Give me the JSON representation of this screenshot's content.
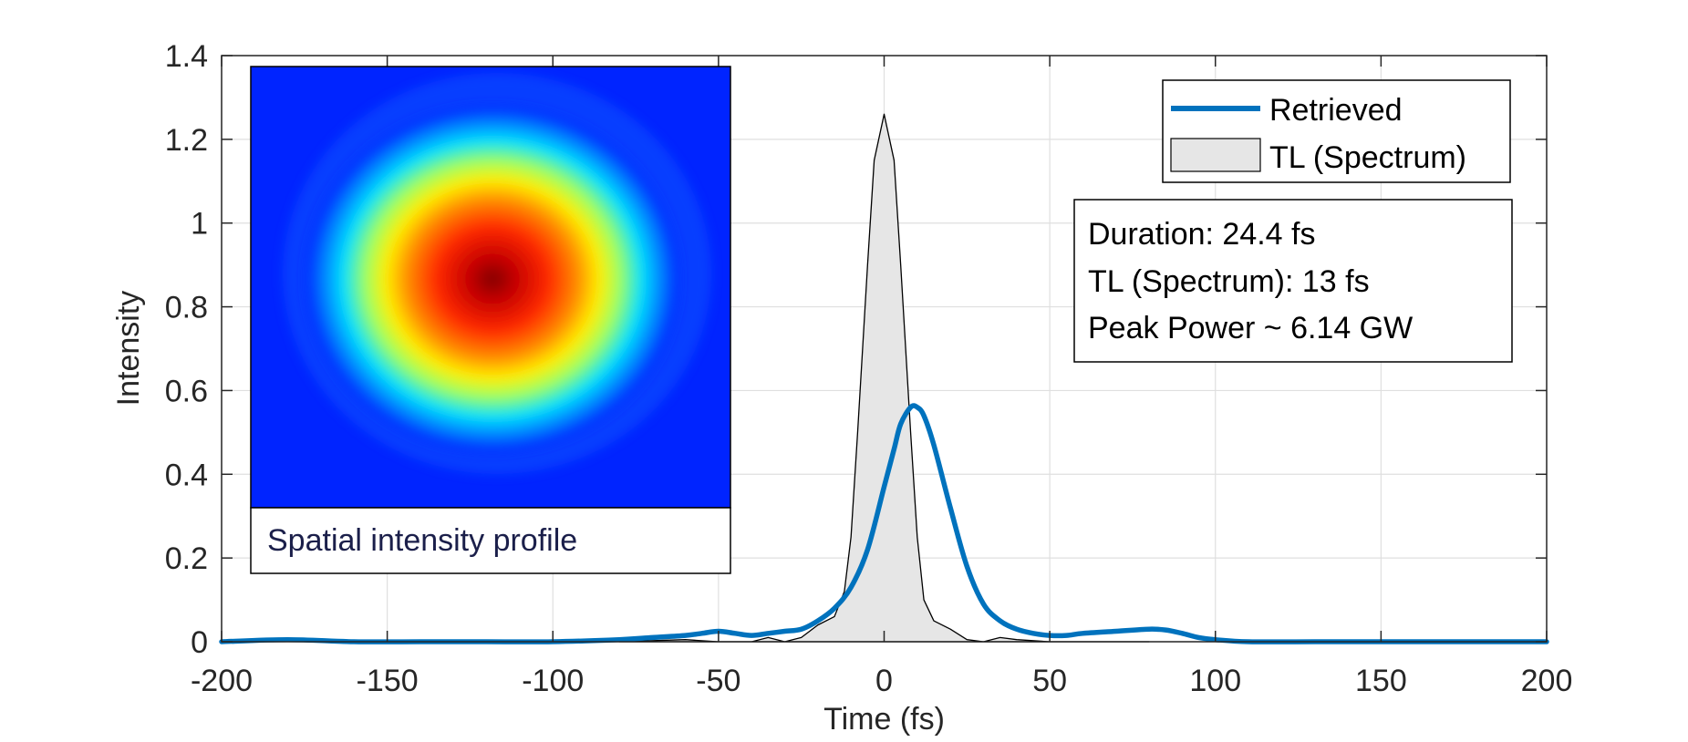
{
  "chart_data": {
    "type": "area",
    "title": "",
    "xlabel": "Time (fs)",
    "ylabel": "Intensity",
    "xlim": [
      -200,
      200
    ],
    "ylim": [
      0,
      1.4
    ],
    "grid": true,
    "xticks": [
      -200,
      -150,
      -100,
      -50,
      0,
      50,
      100,
      150,
      200
    ],
    "xtick_labels": [
      "-200",
      "-150",
      "-100",
      "-50",
      "0",
      "50",
      "100",
      "150",
      "200"
    ],
    "yticks": [
      0,
      0.2,
      0.4,
      0.6,
      0.8,
      1,
      1.2,
      1.4
    ],
    "ytick_labels": [
      "0",
      "0.2",
      "0.4",
      "0.6",
      "0.8",
      "1",
      "1.2",
      "1.4"
    ],
    "legend_position": "top-right",
    "series": [
      {
        "name": "Retrieved",
        "style": "line",
        "color": "#0072bd",
        "x": [
          -200,
          -180,
          -160,
          -140,
          -120,
          -100,
          -80,
          -70,
          -60,
          -55,
          -50,
          -45,
          -40,
          -35,
          -30,
          -25,
          -20,
          -15,
          -10,
          -5,
          0,
          3,
          5,
          8,
          10,
          12,
          15,
          20,
          25,
          30,
          35,
          40,
          45,
          50,
          55,
          60,
          70,
          80,
          85,
          90,
          95,
          100,
          110,
          130,
          150,
          170,
          200
        ],
        "values": [
          0.0,
          0.005,
          0.0,
          0.0,
          0.0,
          0.0,
          0.005,
          0.01,
          0.015,
          0.02,
          0.025,
          0.02,
          0.015,
          0.02,
          0.025,
          0.03,
          0.05,
          0.08,
          0.13,
          0.22,
          0.37,
          0.46,
          0.52,
          0.56,
          0.56,
          0.54,
          0.47,
          0.32,
          0.18,
          0.09,
          0.05,
          0.03,
          0.02,
          0.015,
          0.015,
          0.02,
          0.025,
          0.03,
          0.028,
          0.02,
          0.01,
          0.005,
          0.0,
          0.0,
          0.0,
          0.0,
          0.0
        ]
      },
      {
        "name": "TL (Spectrum)",
        "style": "area",
        "color": "#e6e6e6",
        "edge_color": "#000000",
        "x": [
          -80,
          -60,
          -50,
          -40,
          -35,
          -30,
          -25,
          -20,
          -15,
          -12,
          -10,
          -8,
          -5,
          -3,
          0,
          3,
          5,
          8,
          10,
          12,
          15,
          20,
          25,
          30,
          35,
          40,
          50,
          60,
          80
        ],
        "values": [
          0.0,
          0.005,
          0.0,
          0.0,
          0.01,
          0.0,
          0.01,
          0.04,
          0.06,
          0.12,
          0.25,
          0.5,
          0.9,
          1.15,
          1.26,
          1.15,
          0.9,
          0.5,
          0.25,
          0.1,
          0.05,
          0.03,
          0.005,
          0.0,
          0.01,
          0.005,
          0.0,
          0.0,
          0.0
        ]
      }
    ],
    "annotation": {
      "lines": [
        "Duration: 24.4 fs",
        "TL (Spectrum): 13 fs",
        "Peak Power ~ 6.14 GW"
      ]
    },
    "inset": {
      "caption": "Spatial intensity profile",
      "colormap": "jet"
    }
  },
  "legend": {
    "retrieved_label": "Retrieved",
    "tl_label": "TL (Spectrum)"
  },
  "colors": {
    "retrieved": "#0072bd",
    "tl_fill": "#e6e6e6",
    "grid": "#dfdfdf",
    "axis": "#262626"
  }
}
